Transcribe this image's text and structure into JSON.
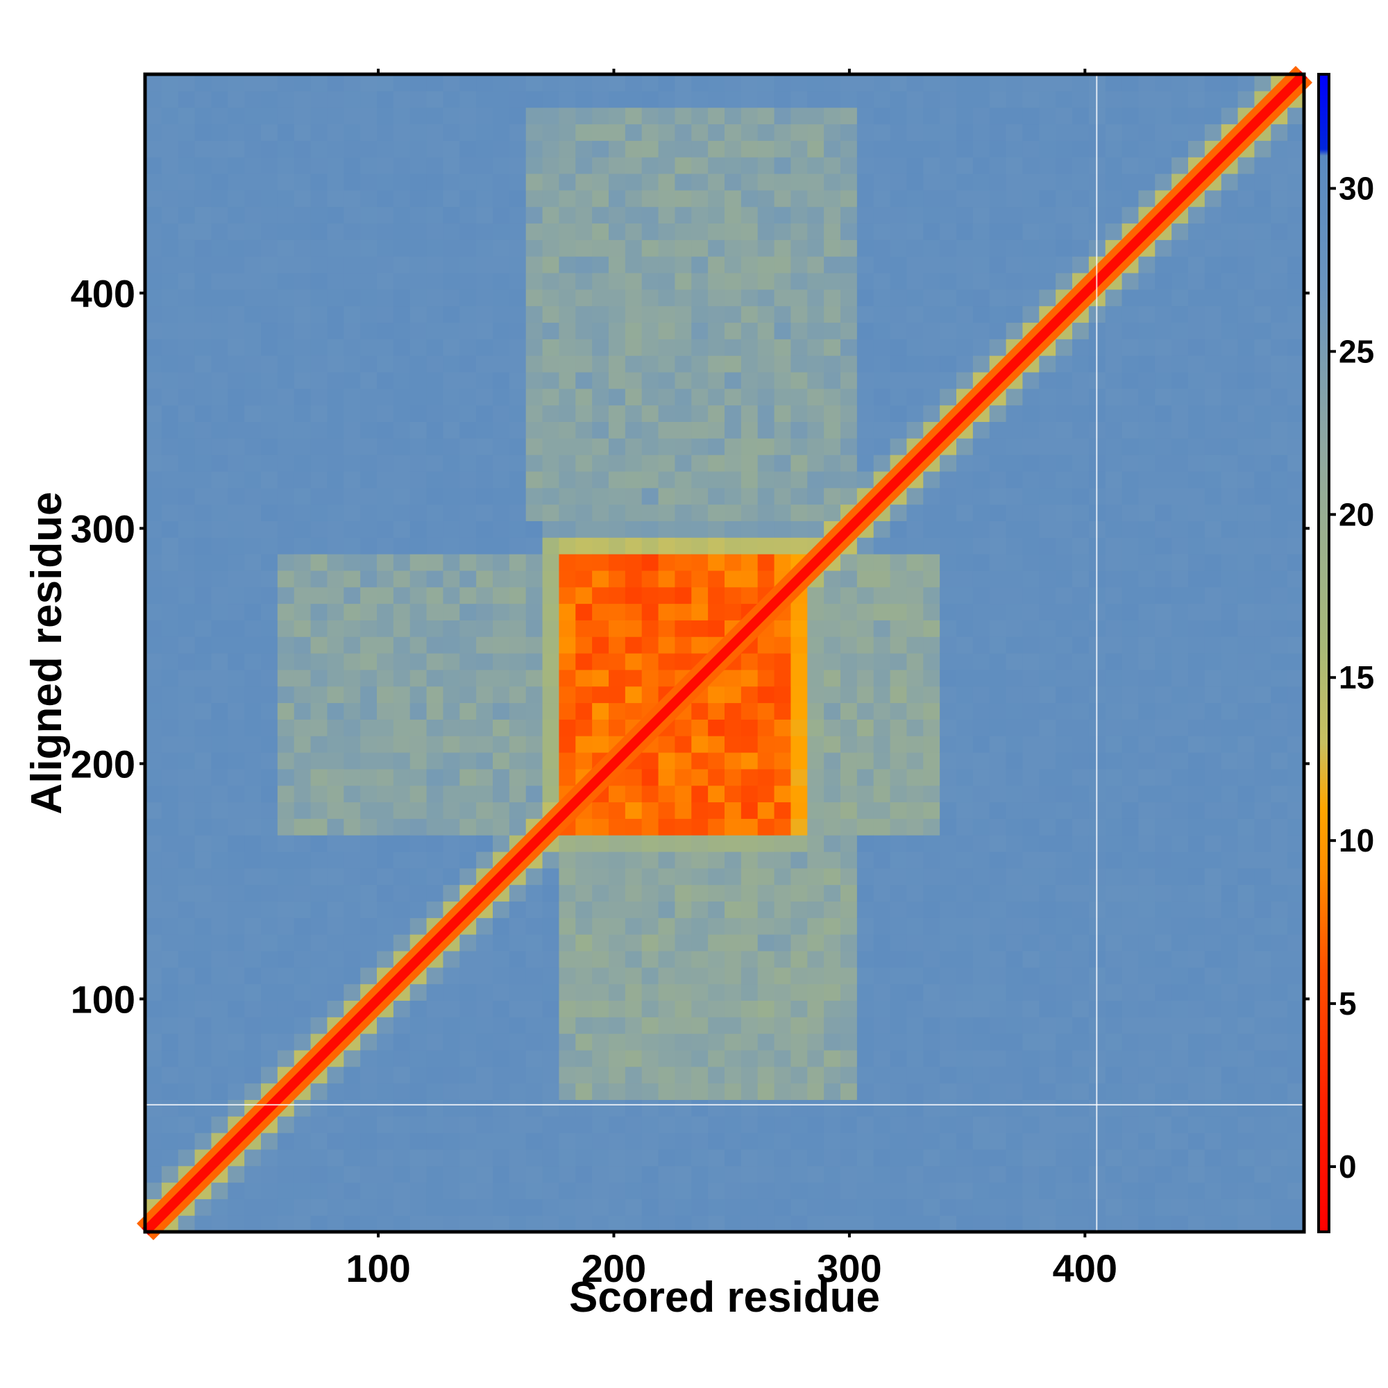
{
  "chart_data": {
    "type": "heatmap",
    "title": "",
    "xlabel": "Scored residue",
    "ylabel": "Aligned residue",
    "n_residues": 493,
    "xlim": [
      1,
      493
    ],
    "ylim": [
      1,
      493
    ],
    "xticks": [
      100,
      200,
      300,
      400
    ],
    "xtick_labels": [
      "100",
      "200",
      "300",
      "400"
    ],
    "yticks": [
      100,
      200,
      300,
      400
    ],
    "ytick_labels": [
      "100",
      "200",
      "300",
      "400"
    ],
    "colorbar": {
      "range": [
        -2,
        33.5
      ],
      "ticks": [
        0,
        5,
        10,
        15,
        20,
        25,
        30
      ],
      "tick_labels": [
        "0",
        "5",
        "10",
        "15",
        "20",
        "25",
        "30"
      ],
      "stops": [
        {
          "value": -2,
          "color": "#ff0000"
        },
        {
          "value": 2,
          "color": "#ff2200"
        },
        {
          "value": 6,
          "color": "#ff5000"
        },
        {
          "value": 9,
          "color": "#ff8c00"
        },
        {
          "value": 11,
          "color": "#ffa500"
        },
        {
          "value": 13,
          "color": "#c8c060"
        },
        {
          "value": 16,
          "color": "#a8b878"
        },
        {
          "value": 22,
          "color": "#8fa8a0"
        },
        {
          "value": 27,
          "color": "#6a94be"
        },
        {
          "value": 31,
          "color": "#5a8ac0"
        },
        {
          "value": 31.2,
          "color": "#0026dd"
        },
        {
          "value": 33.5,
          "color": "#0000ff"
        }
      ]
    },
    "diagonal_error": 3,
    "background_error": 29,
    "high_confidence_blocks": [
      {
        "x": [
          178,
          216
        ],
        "y": [
          172,
          290
        ],
        "error": 5
      },
      {
        "x": [
          220,
          278
        ],
        "y": [
          172,
          290
        ],
        "error": 5
      }
    ],
    "moderate_regions": [
      {
        "x": [
          175,
          300
        ],
        "y": [
          60,
          170
        ],
        "error": 20
      },
      {
        "x": [
          160,
          300
        ],
        "y": [
          300,
          480
        ],
        "error": 21
      },
      {
        "x": [
          60,
          170
        ],
        "y": [
          172,
          290
        ],
        "error": 21
      },
      {
        "x": [
          280,
          340
        ],
        "y": [
          172,
          290
        ],
        "error": 20
      }
    ],
    "gap_lines": {
      "x": 405,
      "y": 55
    }
  }
}
